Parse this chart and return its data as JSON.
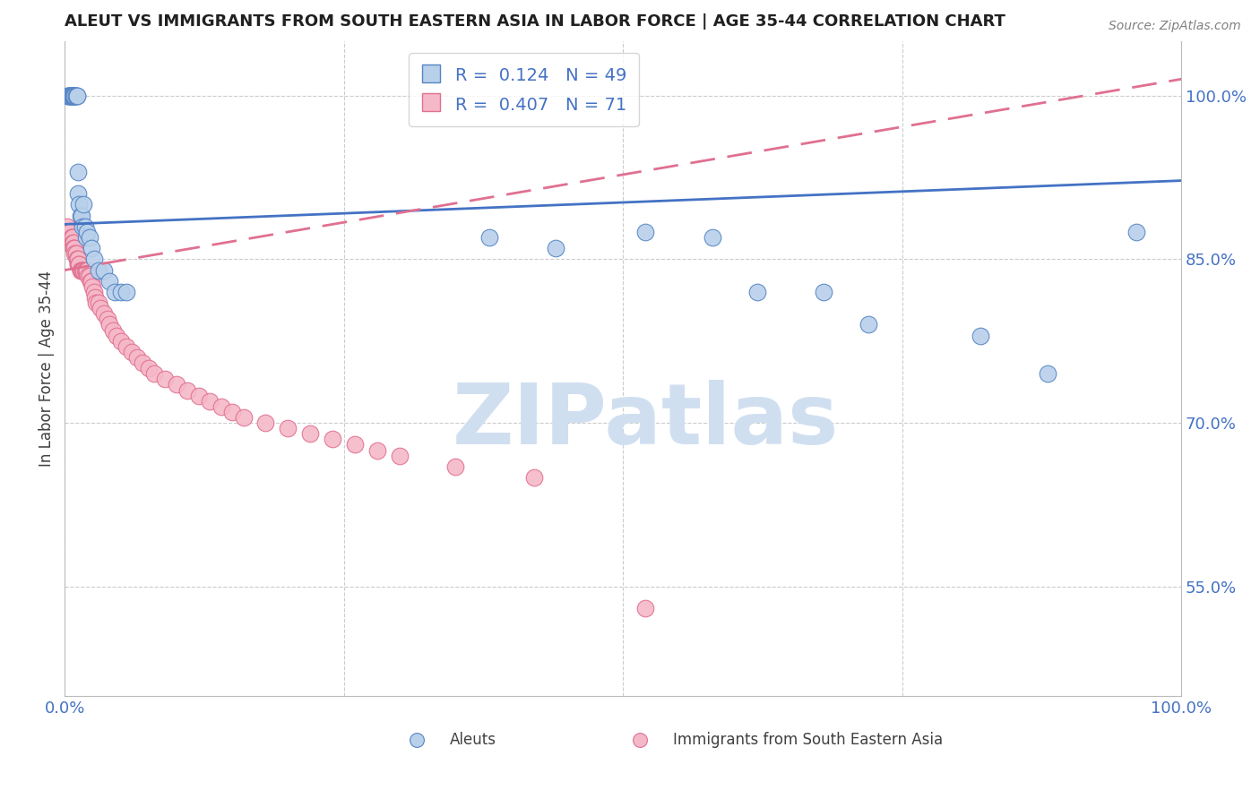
{
  "title": "ALEUT VS IMMIGRANTS FROM SOUTH EASTERN ASIA IN LABOR FORCE | AGE 35-44 CORRELATION CHART",
  "source": "Source: ZipAtlas.com",
  "ylabel": "In Labor Force | Age 35-44",
  "legend_label1": "Aleuts",
  "legend_label2": "Immigrants from South Eastern Asia",
  "R_aleut": 0.124,
  "N_aleut": 49,
  "R_immig": 0.407,
  "N_immig": 71,
  "blue_fill": "#b8d0ea",
  "blue_edge": "#5585c5",
  "pink_fill": "#f5b8c8",
  "pink_edge": "#e07090",
  "blue_line": "#4472c4",
  "pink_line": "#e07090",
  "grid_color": "#cccccc",
  "title_color": "#202020",
  "axis_tick_color": "#4472c4",
  "background_color": "#ffffff",
  "watermark_color": "#d0dff0",
  "aleut_x": [
    0.002,
    0.003,
    0.004,
    0.004,
    0.005,
    0.005,
    0.006,
    0.006,
    0.006,
    0.007,
    0.007,
    0.008,
    0.008,
    0.008,
    0.009,
    0.009,
    0.01,
    0.01,
    0.011,
    0.011,
    0.012,
    0.012,
    0.013,
    0.014,
    0.015,
    0.016,
    0.017,
    0.018,
    0.019,
    0.02,
    0.022,
    0.024,
    0.026,
    0.03,
    0.035,
    0.04,
    0.045,
    0.05,
    0.055,
    0.38,
    0.44,
    0.52,
    0.58,
    0.62,
    0.68,
    0.72,
    0.82,
    0.88,
    0.96
  ],
  "aleut_y": [
    1.0,
    1.0,
    1.0,
    1.0,
    1.0,
    1.0,
    1.0,
    1.0,
    1.0,
    1.0,
    1.0,
    1.0,
    1.0,
    1.0,
    1.0,
    1.0,
    1.0,
    1.0,
    1.0,
    1.0,
    0.93,
    0.91,
    0.9,
    0.89,
    0.89,
    0.88,
    0.9,
    0.88,
    0.87,
    0.875,
    0.87,
    0.86,
    0.85,
    0.84,
    0.84,
    0.83,
    0.82,
    0.82,
    0.82,
    0.87,
    0.86,
    0.875,
    0.87,
    0.82,
    0.82,
    0.79,
    0.78,
    0.745,
    0.875
  ],
  "immig_x": [
    0.002,
    0.003,
    0.004,
    0.005,
    0.005,
    0.006,
    0.006,
    0.007,
    0.007,
    0.008,
    0.008,
    0.008,
    0.009,
    0.009,
    0.01,
    0.01,
    0.011,
    0.011,
    0.012,
    0.012,
    0.012,
    0.013,
    0.013,
    0.014,
    0.014,
    0.015,
    0.016,
    0.017,
    0.018,
    0.019,
    0.02,
    0.021,
    0.022,
    0.023,
    0.024,
    0.025,
    0.026,
    0.027,
    0.028,
    0.03,
    0.032,
    0.035,
    0.038,
    0.04,
    0.043,
    0.046,
    0.05,
    0.055,
    0.06,
    0.065,
    0.07,
    0.075,
    0.08,
    0.09,
    0.1,
    0.11,
    0.12,
    0.13,
    0.14,
    0.15,
    0.16,
    0.18,
    0.2,
    0.22,
    0.24,
    0.26,
    0.28,
    0.3,
    0.35,
    0.42,
    0.52
  ],
  "immig_y": [
    0.88,
    0.875,
    0.87,
    0.87,
    0.875,
    0.87,
    0.87,
    0.87,
    0.865,
    0.865,
    0.86,
    0.86,
    0.86,
    0.855,
    0.855,
    0.855,
    0.85,
    0.85,
    0.845,
    0.845,
    0.85,
    0.845,
    0.845,
    0.84,
    0.84,
    0.84,
    0.84,
    0.84,
    0.84,
    0.84,
    0.84,
    0.835,
    0.835,
    0.83,
    0.83,
    0.825,
    0.82,
    0.815,
    0.81,
    0.81,
    0.805,
    0.8,
    0.795,
    0.79,
    0.785,
    0.78,
    0.775,
    0.77,
    0.765,
    0.76,
    0.755,
    0.75,
    0.745,
    0.74,
    0.735,
    0.73,
    0.725,
    0.72,
    0.715,
    0.71,
    0.705,
    0.7,
    0.695,
    0.69,
    0.685,
    0.68,
    0.675,
    0.67,
    0.66,
    0.65,
    0.53
  ],
  "xmin": 0.0,
  "xmax": 1.0,
  "ymin": 0.45,
  "ymax": 1.05,
  "yticks": [
    0.55,
    0.7,
    0.85,
    1.0
  ],
  "ytick_labels": [
    "55.0%",
    "70.0%",
    "85.0%",
    "100.0%"
  ],
  "xticks": [
    0.0,
    1.0
  ],
  "xtick_labels": [
    "0.0%",
    "100.0%"
  ]
}
